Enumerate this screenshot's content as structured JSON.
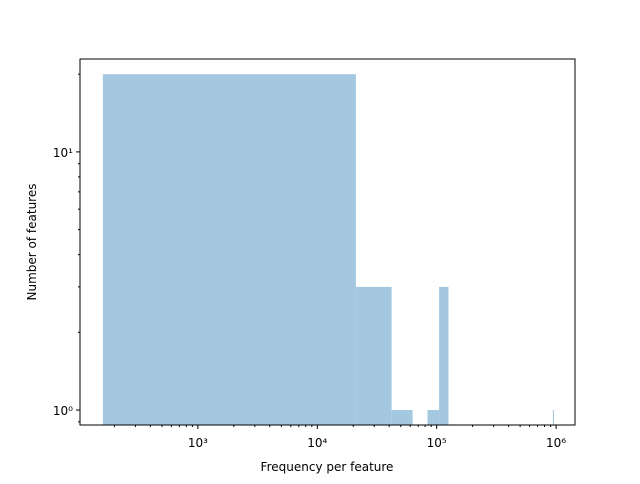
{
  "chart_data": {
    "type": "histogram",
    "xlabel": "Frequency per feature",
    "ylabel": "Number of features",
    "bins": [
      160,
      21060,
      41960,
      62860,
      83760,
      104660,
      125560,
      146460,
      167360,
      188260,
      209160,
      230060,
      250960,
      271860,
      292760,
      313660,
      334560,
      355460,
      376360,
      397260,
      418160,
      439060,
      459960,
      480860,
      501760,
      522660,
      543560,
      564460,
      585360,
      606260,
      627160,
      648060,
      668960,
      689860,
      710760,
      731660,
      752560,
      773460,
      794360,
      815260,
      836160,
      857060,
      877960,
      898860,
      919760,
      940660,
      961560
    ],
    "values": [
      20,
      3,
      1,
      0,
      1,
      3,
      0,
      0,
      0,
      0,
      0,
      0,
      0,
      0,
      0,
      0,
      0,
      0,
      0,
      0,
      0,
      0,
      0,
      0,
      0,
      0,
      0,
      0,
      0,
      0,
      0,
      0,
      0,
      0,
      0,
      0,
      0,
      0,
      0,
      0,
      0,
      0,
      0,
      0,
      0,
      1
    ],
    "color": "#a5c8e1",
    "xscale": "log",
    "yscale": "log",
    "xlim": [
      103,
      1440000
    ],
    "ylim": [
      0.875,
      22.9
    ],
    "xticks": [
      {
        "value": 1000,
        "label": "10³"
      },
      {
        "value": 10000,
        "label": "10⁴"
      },
      {
        "value": 100000,
        "label": "10⁵"
      },
      {
        "value": 1000000,
        "label": "10⁶"
      }
    ],
    "yticks": [
      {
        "value": 1,
        "label": "10⁰"
      },
      {
        "value": 10,
        "label": "10¹"
      }
    ]
  }
}
